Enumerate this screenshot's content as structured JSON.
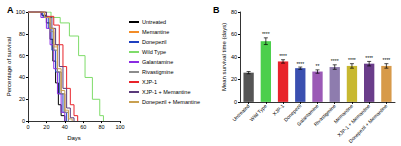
{
  "chart_data": [
    {
      "type": "line",
      "title": "A",
      "line_style": "step",
      "x_label": "Days",
      "y_label": "Percentage of survival",
      "xlim": [
        0,
        100
      ],
      "xticks": [
        0,
        20,
        40,
        60,
        80,
        100
      ],
      "ylim": [
        0,
        100
      ],
      "yticks": [
        0,
        20,
        40,
        60,
        80,
        100
      ],
      "legend": "right",
      "series": [
        {
          "name": "Untreated",
          "color": "#000000",
          "x": [
            0,
            15,
            20,
            24,
            27,
            30,
            33,
            36,
            40
          ],
          "values": [
            100,
            97,
            90,
            75,
            55,
            35,
            15,
            5,
            0
          ]
        },
        {
          "name": "Memantine",
          "color": "#f28c28",
          "x": [
            0,
            18,
            24,
            28,
            32,
            36,
            40,
            44
          ],
          "values": [
            100,
            95,
            85,
            70,
            45,
            25,
            8,
            0
          ]
        },
        {
          "name": "Donepezil",
          "color": "#1f3fbf",
          "x": [
            0,
            16,
            22,
            26,
            30,
            34,
            38,
            42
          ],
          "values": [
            100,
            96,
            85,
            65,
            45,
            25,
            8,
            0
          ]
        },
        {
          "name": "Wild Type",
          "color": "#7fdc6a",
          "x": [
            0,
            25,
            35,
            45,
            55,
            62,
            70,
            78,
            82
          ],
          "values": [
            100,
            95,
            90,
            78,
            60,
            40,
            20,
            5,
            0
          ]
        },
        {
          "name": "Galantamine",
          "color": "#8a2be2",
          "x": [
            0,
            14,
            20,
            24,
            28,
            32,
            36,
            40
          ],
          "values": [
            100,
            95,
            85,
            70,
            48,
            25,
            8,
            0
          ]
        },
        {
          "name": "Rivastigmine",
          "color": "#8c8c8c",
          "x": [
            0,
            18,
            24,
            28,
            32,
            36,
            40,
            44
          ],
          "values": [
            100,
            95,
            82,
            65,
            45,
            25,
            8,
            0
          ]
        },
        {
          "name": "XJP-1",
          "color": "#e8232a",
          "x": [
            0,
            20,
            28,
            34,
            38,
            42,
            46,
            50,
            54
          ],
          "values": [
            100,
            96,
            88,
            70,
            50,
            30,
            15,
            5,
            0
          ]
        },
        {
          "name": "XJP-1 + Memantine",
          "color": "#5a3a7a",
          "x": [
            0,
            20,
            26,
            30,
            34,
            38,
            42,
            46,
            50
          ],
          "values": [
            100,
            95,
            85,
            70,
            50,
            30,
            12,
            3,
            0
          ]
        },
        {
          "name": "Donepezil + Memantine",
          "color": "#c8a050",
          "x": [
            0,
            18,
            24,
            28,
            32,
            36,
            40,
            44,
            48
          ],
          "values": [
            100,
            95,
            85,
            68,
            48,
            28,
            10,
            2,
            0
          ]
        }
      ]
    },
    {
      "type": "bar",
      "title": "B",
      "y_label": "Mean survival time (days)",
      "ylim": [
        0,
        80
      ],
      "yticks": [
        0,
        20,
        40,
        60,
        80
      ],
      "categories": [
        "Untreated",
        "Wild Type",
        "XJP-1",
        "Donepezil",
        "Galantamine",
        "Rivastigmine",
        "Memantine",
        "XJP-1 + Memantine",
        "Donepezil + Memantine"
      ],
      "values": [
        26,
        54,
        36,
        30,
        27,
        31,
        32,
        34,
        32
      ],
      "errors": [
        1,
        3,
        1.5,
        1,
        1.5,
        2,
        2,
        2,
        2
      ],
      "annotations": [
        null,
        "****",
        "****",
        "****",
        "**",
        "****",
        "****",
        "****",
        "****"
      ],
      "colors": [
        "#555555",
        "#4ccf4c",
        "#e8232a",
        "#3a4fb0",
        "#9b59b6",
        "#8e7cae",
        "#c8b830",
        "#6a3d8a",
        "#d79a4a"
      ]
    }
  ]
}
